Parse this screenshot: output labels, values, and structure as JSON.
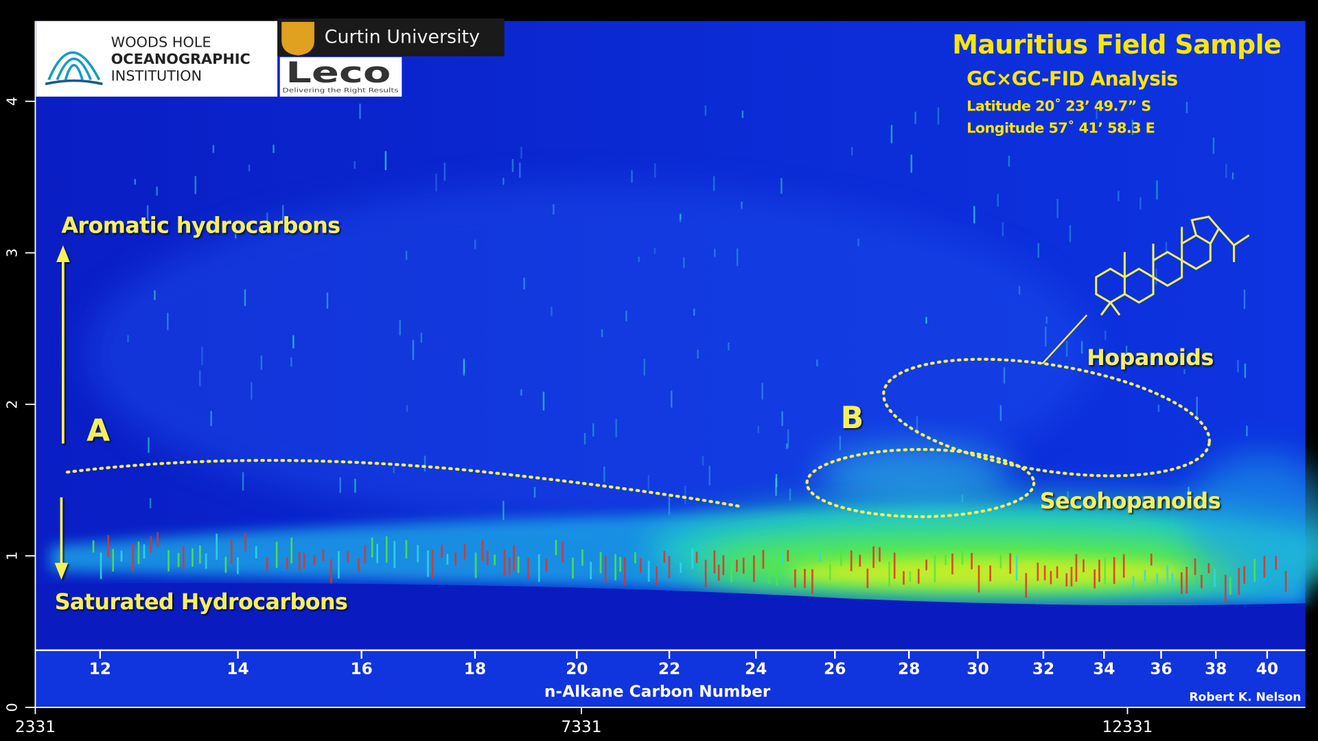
{
  "chart_data": {
    "type": "heatmap",
    "title": "Mauritius Field Sample",
    "subtitle": "GC×GC-FID Analysis",
    "latitude": "Latitude 20˚ 23’ 49.7” S",
    "longitude": "Longitude 57˚ 41’ 58.3 E",
    "xlim": [
      2331,
      13960
    ],
    "xticks": [
      2331,
      7331,
      12331
    ],
    "ylim": [
      0,
      4.53
    ],
    "yticks": [
      0,
      1,
      2,
      3,
      4
    ],
    "carbon_axis": {
      "label": "n-Alkane Carbon Number",
      "labels": [
        12,
        14,
        16,
        18,
        20,
        22,
        24,
        26,
        28,
        30,
        32,
        34,
        36,
        38,
        40
      ],
      "positions": [
        2924,
        4186,
        5318,
        6357,
        7289,
        8136,
        8929,
        9652,
        10330,
        10961,
        11561,
        12116,
        12639,
        13140,
        13610
      ]
    },
    "annotations": {
      "aromatic": "Aromatic hydrocarbons",
      "saturated": "Saturated Hydrocarbons",
      "a": "A",
      "b": "B",
      "hopanoids": "Hopanoids",
      "secohopanoids": "Secohopanoids",
      "credit": "Robert K. Nelson"
    },
    "logos": {
      "whoi": [
        "WOODS HOLE",
        "OCEANOGRAPHIC",
        "INSTITUTION"
      ],
      "curtin": "Curtin University",
      "leco": "Leco",
      "leco_tagline": "Delivering the Right Results"
    },
    "colors": {
      "background": "#0a28d2",
      "annotation": "#f4f05a",
      "title": "#ffe600"
    }
  }
}
